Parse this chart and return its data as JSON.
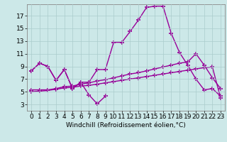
{
  "xlabel": "Windchill (Refroidissement éolien,°C)",
  "background_color": "#cce8e8",
  "grid_color": "#aacccc",
  "line_color": "#990099",
  "marker": "+",
  "markersize": 4,
  "linewidth": 1.0,
  "xlim": [
    -0.5,
    23.5
  ],
  "ylim": [
    2.0,
    18.8
  ],
  "xticks": [
    0,
    1,
    2,
    3,
    4,
    5,
    6,
    7,
    8,
    9,
    10,
    11,
    12,
    13,
    14,
    15,
    16,
    17,
    18,
    19,
    20,
    21,
    22,
    23
  ],
  "yticks": [
    3,
    5,
    7,
    9,
    11,
    13,
    15,
    17
  ],
  "fontsize_ticks": 6.5,
  "fontsize_label": 6.5,
  "line1_x": [
    0,
    1,
    2,
    3,
    4,
    5,
    6,
    7,
    8,
    9,
    10,
    11,
    12,
    13,
    14,
    15,
    16,
    17,
    18,
    19,
    20,
    21,
    22,
    23
  ],
  "line1_y": [
    8.3,
    9.5,
    9.0,
    6.8,
    8.5,
    5.5,
    6.5,
    6.5,
    8.5,
    8.5,
    12.8,
    12.8,
    14.5,
    16.3,
    18.3,
    18.5,
    18.5,
    14.2,
    11.2,
    9.2,
    7.0,
    5.3,
    5.5,
    4.3
  ],
  "line2_x": [
    0,
    1,
    2,
    3,
    4,
    5,
    6,
    7,
    8,
    9
  ],
  "line2_y": [
    8.3,
    9.5,
    9.0,
    6.8,
    8.5,
    5.5,
    6.5,
    4.5,
    3.1,
    4.3
  ],
  "line3_x": [
    0,
    1,
    2,
    3,
    4,
    5,
    6,
    7,
    8,
    9,
    10,
    11,
    12,
    13,
    14,
    15,
    16,
    17,
    18,
    19,
    20,
    21,
    22,
    23
  ],
  "line3_y": [
    5.3,
    5.3,
    5.3,
    5.5,
    5.8,
    5.9,
    6.2,
    6.4,
    6.7,
    6.9,
    7.2,
    7.5,
    7.8,
    8.0,
    8.3,
    8.6,
    8.9,
    9.2,
    9.5,
    9.7,
    11.0,
    9.2,
    7.2,
    5.5
  ],
  "line4_x": [
    0,
    1,
    2,
    3,
    4,
    5,
    6,
    7,
    8,
    9,
    10,
    11,
    12,
    13,
    14,
    15,
    16,
    17,
    18,
    19,
    20,
    21,
    22,
    23
  ],
  "line4_y": [
    5.0,
    5.1,
    5.2,
    5.4,
    5.6,
    5.7,
    5.9,
    6.0,
    6.2,
    6.4,
    6.6,
    6.8,
    7.0,
    7.2,
    7.4,
    7.6,
    7.8,
    8.0,
    8.2,
    8.4,
    8.6,
    8.8,
    8.9,
    4.0
  ]
}
